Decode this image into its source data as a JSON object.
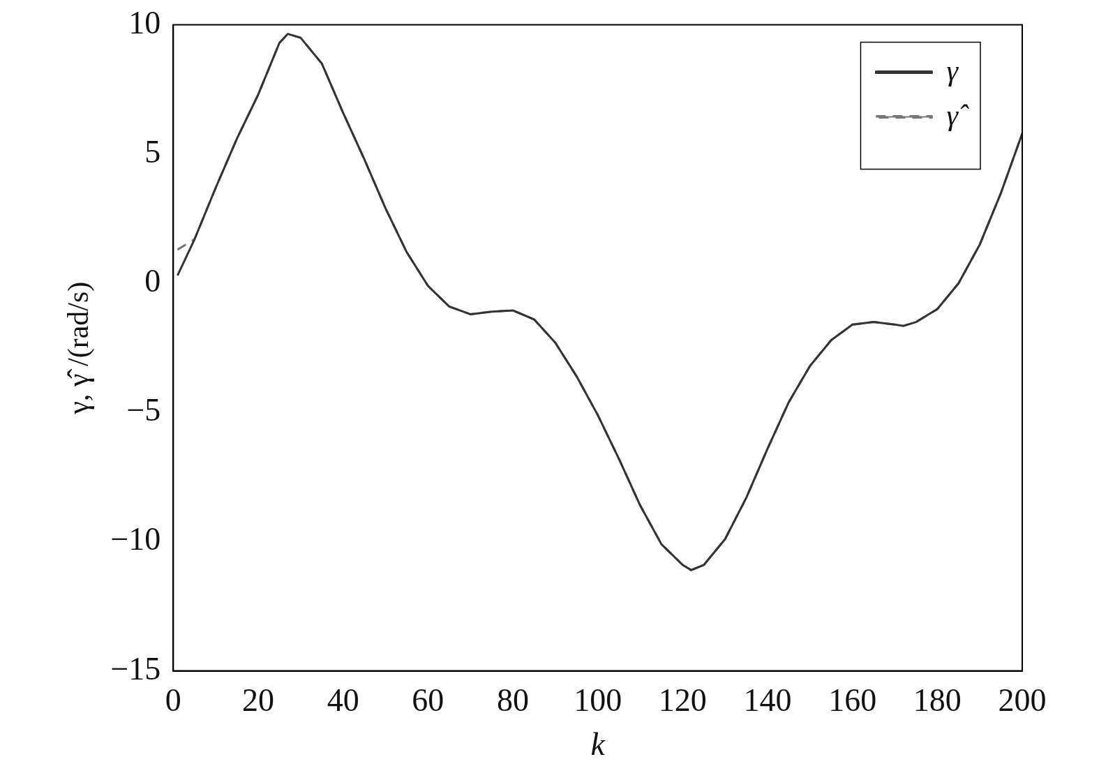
{
  "chart_data": {
    "type": "line",
    "xlabel": "k",
    "ylabel": "γ, γ̂ /(rad/s)",
    "x": [
      1,
      5,
      10,
      15,
      20,
      25,
      27,
      30,
      35,
      40,
      45,
      50,
      55,
      60,
      65,
      70,
      75,
      80,
      85,
      90,
      95,
      100,
      105,
      110,
      115,
      120,
      122,
      125,
      130,
      135,
      140,
      145,
      150,
      155,
      160,
      165,
      170,
      172,
      175,
      180,
      185,
      190,
      195,
      200
    ],
    "series": [
      {
        "name": "γ",
        "color": "#333333",
        "line_style": "solid",
        "values": [
          0.3,
          1.7,
          3.7,
          5.6,
          7.3,
          9.3,
          9.65,
          9.5,
          8.5,
          6.6,
          4.8,
          2.9,
          1.2,
          -0.1,
          -0.9,
          -1.2,
          -1.1,
          -1.05,
          -1.4,
          -2.3,
          -3.6,
          -5.1,
          -6.8,
          -8.6,
          -10.1,
          -10.9,
          -11.1,
          -10.9,
          -9.9,
          -8.3,
          -6.4,
          -4.6,
          -3.2,
          -2.2,
          -1.6,
          -1.5,
          -1.6,
          -1.65,
          -1.5,
          -1.0,
          0.0,
          1.5,
          3.5,
          5.8
        ]
      },
      {
        "name": "γ̂",
        "color": "#777777",
        "line_style": "dashed",
        "values": [
          1.3,
          1.7,
          3.7,
          5.6,
          7.3,
          9.3,
          9.65,
          9.5,
          8.5,
          6.6,
          4.8,
          2.9,
          1.2,
          -0.1,
          -0.9,
          -1.2,
          -1.1,
          -1.05,
          -1.4,
          -2.3,
          -3.6,
          -5.1,
          -6.8,
          -8.6,
          -10.1,
          -10.9,
          -11.1,
          -10.9,
          -9.9,
          -8.3,
          -6.4,
          -4.6,
          -3.2,
          -2.2,
          -1.6,
          -1.5,
          -1.6,
          -1.65,
          -1.5,
          -1.0,
          0.0,
          1.5,
          3.5,
          5.8
        ]
      }
    ],
    "xlim": [
      0,
      200
    ],
    "xticks": [
      0,
      20,
      40,
      60,
      80,
      100,
      120,
      140,
      160,
      180,
      200
    ],
    "ylim": [
      -15,
      10
    ],
    "yticks": [
      {
        "value": -15,
        "label": "−15"
      },
      {
        "value": -10,
        "label": "−10"
      },
      {
        "value": -5,
        "label": "−5"
      },
      0,
      5,
      10
    ],
    "grid": false,
    "legend": "top right",
    "marker": "none"
  }
}
